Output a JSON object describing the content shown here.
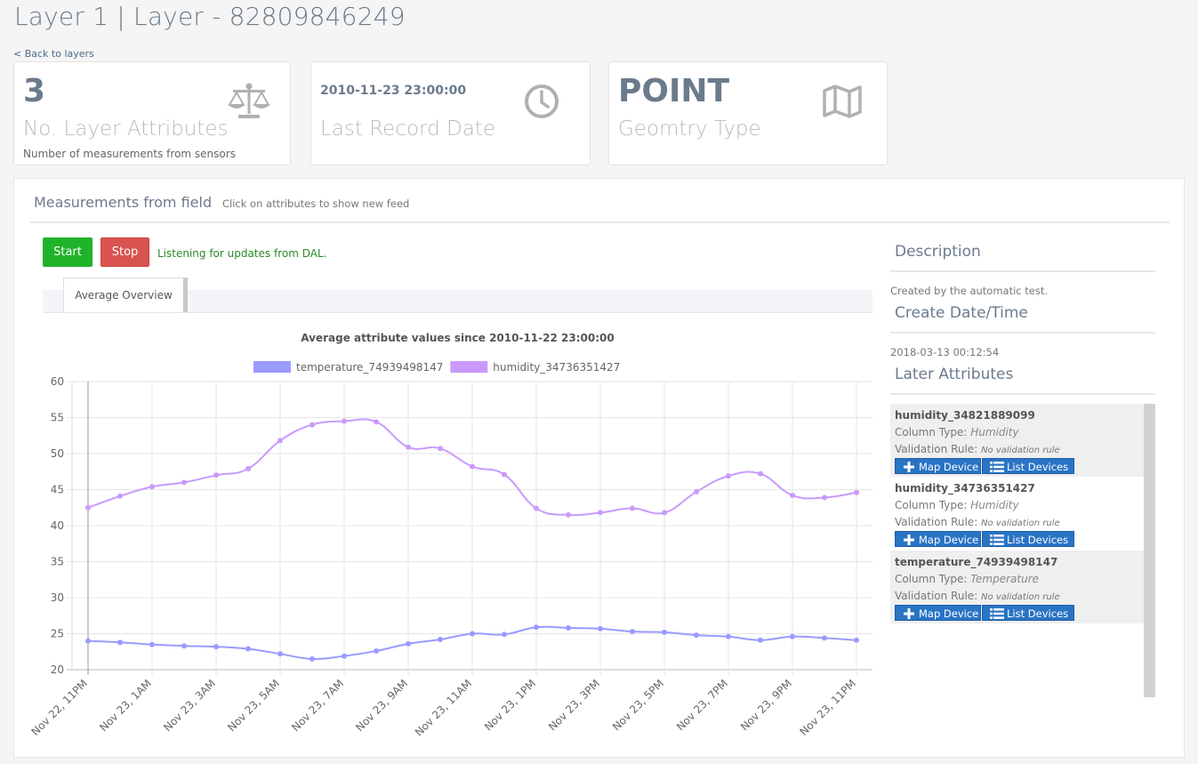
{
  "header": {
    "title": "Layer 1 | Layer - 82809846249",
    "back_link": "< Back to layers"
  },
  "stats": [
    {
      "value": "3",
      "label": "No. Layer Attributes",
      "sub": "Number of measurements from sensors",
      "icon": "balance-scale-icon"
    },
    {
      "value": "2010-11-23 23:00:00",
      "label": "Last Record Date",
      "icon": "clock-icon"
    },
    {
      "value": "POINT",
      "label": "Geomtry Type",
      "icon": "map-icon"
    }
  ],
  "panel": {
    "title": "Measurements from field",
    "hint": "Click on attributes to show new feed",
    "start_label": "Start",
    "stop_label": "Stop",
    "status": "Listening for updates from DAL.",
    "tab_label": "Average Overview"
  },
  "side": {
    "description_heading": "Description",
    "description_text": "Created by the automatic test.",
    "create_heading": "Create Date/Time",
    "create_text": "2018-03-13 00:12:54",
    "attributes_heading": "Later Attributes",
    "attributes": [
      {
        "name": "humidity_34821889099",
        "column_type_label": "Column Type:",
        "column_type": "Humidity",
        "rule_label": "Validation Rule:",
        "rule": "No validation rule",
        "map_label": "Map Device",
        "list_label": "List Devices"
      },
      {
        "name": "humidity_34736351427",
        "column_type_label": "Column Type:",
        "column_type": "Humidity",
        "rule_label": "Validation Rule:",
        "rule": "No validation rule",
        "map_label": "Map Device",
        "list_label": "List Devices"
      },
      {
        "name": "temperature_74939498147",
        "column_type_label": "Column Type:",
        "column_type": "Temperature",
        "rule_label": "Validation Rule:",
        "rule": "No validation rule",
        "map_label": "Map Device",
        "list_label": "List Devices"
      }
    ]
  },
  "chart_data": {
    "type": "line",
    "title": "Average attribute values since  2010-11-22 23:00:00",
    "ylim": [
      20,
      60
    ],
    "yticks": [
      20,
      25,
      30,
      35,
      40,
      45,
      50,
      55,
      60
    ],
    "grid": true,
    "legend_position": "top",
    "x_tick_labels": [
      "Nov 22, 11PM",
      "Nov 23, 1AM",
      "Nov 23, 3AM",
      "Nov 23, 5AM",
      "Nov 23, 7AM",
      "Nov 23, 9AM",
      "Nov 23, 11AM",
      "Nov 23, 1PM",
      "Nov 23, 3PM",
      "Nov 23, 5PM",
      "Nov 23, 7PM",
      "Nov 23, 9PM",
      "Nov 23, 11PM"
    ],
    "x": [
      "Nov 22, 11PM",
      "Nov 23, 12AM",
      "Nov 23, 1AM",
      "Nov 23, 2AM",
      "Nov 23, 3AM",
      "Nov 23, 4AM",
      "Nov 23, 5AM",
      "Nov 23, 6AM",
      "Nov 23, 7AM",
      "Nov 23, 8AM",
      "Nov 23, 9AM",
      "Nov 23, 10AM",
      "Nov 23, 11AM",
      "Nov 23, 12PM",
      "Nov 23, 1PM",
      "Nov 23, 2PM",
      "Nov 23, 3PM",
      "Nov 23, 4PM",
      "Nov 23, 5PM",
      "Nov 23, 6PM",
      "Nov 23, 7PM",
      "Nov 23, 8PM",
      "Nov 23, 9PM",
      "Nov 23, 10PM",
      "Nov 23, 11PM"
    ],
    "series": [
      {
        "name": "temperature_74939498147",
        "color": "#9a9aff",
        "values": [
          24.0,
          23.8,
          23.5,
          23.3,
          23.2,
          22.9,
          22.2,
          21.5,
          21.9,
          22.6,
          23.6,
          24.2,
          25.0,
          24.9,
          25.9,
          25.8,
          25.7,
          25.3,
          25.2,
          24.8,
          24.6,
          24.1,
          24.6,
          24.4,
          24.1
        ]
      },
      {
        "name": "humidity_34736351427",
        "color": "#c99afc",
        "values": [
          42.5,
          44.1,
          45.4,
          46.0,
          47.0,
          47.9,
          51.8,
          54.0,
          54.5,
          54.4,
          50.9,
          50.7,
          48.2,
          47.1,
          42.4,
          41.5,
          41.8,
          42.4,
          41.8,
          44.7,
          46.9,
          47.2,
          44.2,
          43.9,
          44.6
        ]
      }
    ]
  }
}
